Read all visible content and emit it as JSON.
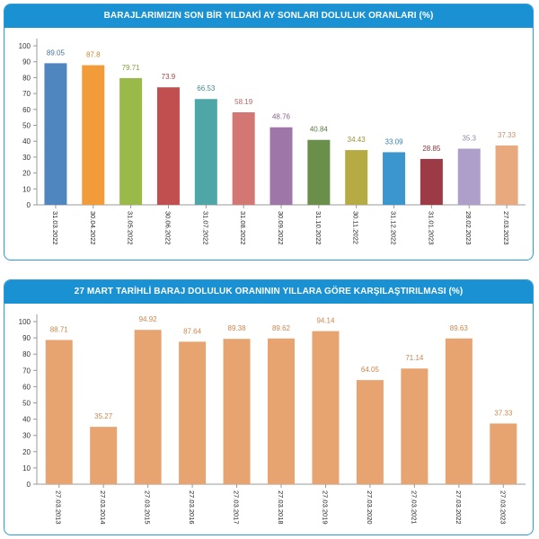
{
  "chart_data": [
    {
      "type": "bar",
      "title": "BARAJLARIMIZIN SON BİR YILDAKİ AY SONLARI DOLULUK ORANLARI (%)",
      "categories": [
        "31.03.2022",
        "30.04.2022",
        "31.05.2022",
        "30.06.2022",
        "31.07.2022",
        "31.08.2022",
        "30.09.2022",
        "31.10.2022",
        "30.11.2022",
        "31.12.2022",
        "31.01.2023",
        "28.02.2023",
        "27.03.2023"
      ],
      "values": [
        89.05,
        87.8,
        79.71,
        73.9,
        66.53,
        58.19,
        48.76,
        40.84,
        34.43,
        33.09,
        28.85,
        35.3,
        37.33
      ],
      "value_labels": [
        "89.05",
        "87.8",
        "79.71",
        "73.9",
        "66.53",
        "58.19",
        "48.76",
        "40.84",
        "34.43",
        "33.09",
        "28.85",
        "35.3",
        "37.33"
      ],
      "colors": [
        "#4f86c0",
        "#f29b3a",
        "#99b948",
        "#c14f4f",
        "#4ea6a6",
        "#d27774",
        "#9e76a8",
        "#6a8f4b",
        "#b5ab42",
        "#3a96cc",
        "#9c3b45",
        "#ad9fca",
        "#e8a97e"
      ],
      "yticks": [
        "0",
        "10",
        "20",
        "30",
        "40",
        "50",
        "60",
        "70",
        "80",
        "90",
        "100"
      ],
      "ylim": [
        0,
        100
      ],
      "xlabel": "",
      "ylabel": "",
      "grid": false,
      "legend": "none"
    },
    {
      "type": "bar",
      "title": "27 MART TARİHLİ BARAJ DOLULUK ORANININ YILLARA GÖRE KARŞILAŞTIRILMASI (%)",
      "categories": [
        "27.03.2013",
        "27.03.2014",
        "27.03.2015",
        "27.03.2016",
        "27.03.2017",
        "27.03.2018",
        "27.03.2019",
        "27.03.2020",
        "27.03.2021",
        "27.03.2022",
        "27.03.2023"
      ],
      "values": [
        88.71,
        35.27,
        94.92,
        87.64,
        89.38,
        89.62,
        94.14,
        64.05,
        71.14,
        89.63,
        37.33
      ],
      "value_labels": [
        "88.71",
        "35.27",
        "94.92",
        "87.64",
        "89.38",
        "89.62",
        "94.14",
        "64.05",
        "71.14",
        "89.63",
        "37.33"
      ],
      "colors": [
        "#e8a470",
        "#e8a470",
        "#e8a470",
        "#e8a470",
        "#e8a470",
        "#e8a470",
        "#e8a470",
        "#e8a470",
        "#e8a470",
        "#e8a470",
        "#e8a470"
      ],
      "yticks": [
        "0",
        "10",
        "20",
        "30",
        "40",
        "50",
        "60",
        "70",
        "80",
        "90",
        "100"
      ],
      "ylim": [
        0,
        100
      ],
      "xlabel": "",
      "ylabel": "",
      "grid": false,
      "legend": "none"
    }
  ]
}
